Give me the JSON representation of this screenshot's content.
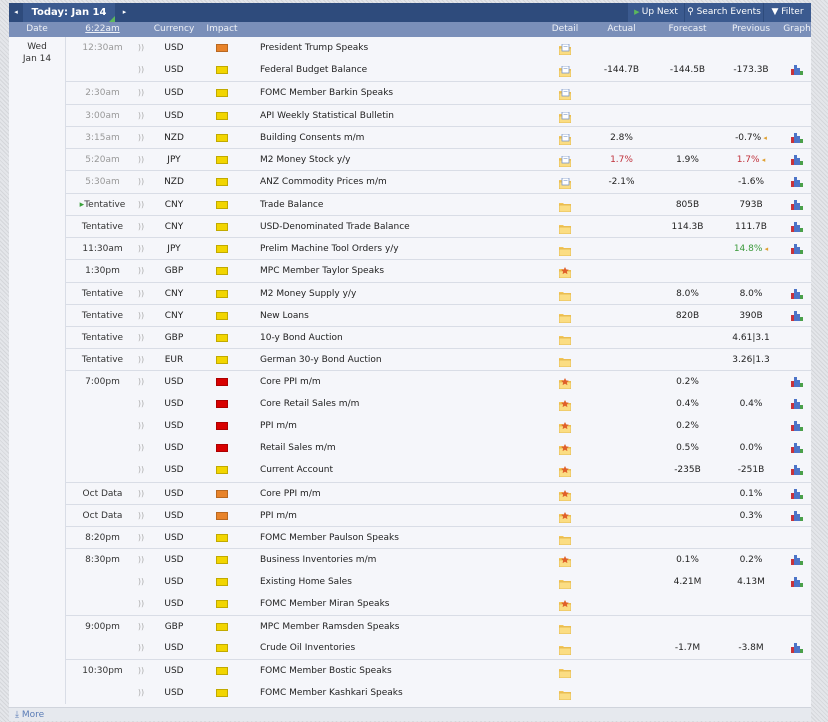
{
  "toolbar": {
    "prev": "◂",
    "today": "Today: Jan 14",
    "next": "▸",
    "up_next": "Up Next",
    "search": "Search Events",
    "filter": "Filter"
  },
  "columns": {
    "date": "Date",
    "time": "6:22am",
    "currency": "Currency",
    "impact": "Impact",
    "detail": "Detail",
    "actual": "Actual",
    "forecast": "Forecast",
    "previous": "Previous",
    "graph": "Graph"
  },
  "date": {
    "day": "Wed",
    "date": "Jan 14"
  },
  "impact_colors": {
    "high": "#d80000",
    "medium": "#e8832a",
    "low": "#f2d500"
  },
  "value_colors": {
    "better": "#3a9a3a",
    "worse": "#c0303a"
  },
  "events": [
    {
      "time": "12:30am",
      "cur": "USD",
      "impact": "medium",
      "event": "President Trump Speaks",
      "detail": "doc",
      "past": true
    },
    {
      "time": "",
      "cur": "USD",
      "impact": "low",
      "event": "Federal Budget Balance",
      "detail": "doc",
      "actual": "-144.7B",
      "forecast": "-144.5B",
      "previous": "-173.3B",
      "graph": true,
      "past": true
    },
    {
      "time": "2:30am",
      "cur": "USD",
      "impact": "low",
      "event": "FOMC Member Barkin Speaks",
      "detail": "doc",
      "past": true
    },
    {
      "time": "3:00am",
      "cur": "USD",
      "impact": "low",
      "event": "API Weekly Statistical Bulletin",
      "detail": "doc",
      "past": true
    },
    {
      "time": "3:15am",
      "cur": "NZD",
      "impact": "low",
      "event": "Building Consents m/m",
      "detail": "doc",
      "actual": "2.8%",
      "previous": "-0.7%",
      "previous_revised": true,
      "graph": true,
      "past": true
    },
    {
      "time": "5:20am",
      "cur": "JPY",
      "impact": "low",
      "event": "M2 Money Stock y/y",
      "detail": "doc",
      "actual": "1.7%",
      "actual_color": "worse",
      "forecast": "1.9%",
      "previous": "1.7%",
      "previous_color": "worse",
      "previous_revised": true,
      "graph": true,
      "past": true
    },
    {
      "time": "5:30am",
      "cur": "NZD",
      "impact": "low",
      "event": "ANZ Commodity Prices m/m",
      "detail": "doc",
      "actual": "-2.1%",
      "previous": "-1.6%",
      "graph": true,
      "past": true
    },
    {
      "time": "Tentative",
      "up_next": true,
      "cur": "CNY",
      "impact": "low",
      "event": "Trade Balance",
      "detail": "folder",
      "forecast": "805B",
      "previous": "793B",
      "graph": true
    },
    {
      "time": "Tentative",
      "cur": "CNY",
      "impact": "low",
      "event": "USD-Denominated Trade Balance",
      "detail": "folder",
      "forecast": "114.3B",
      "previous": "111.7B",
      "graph": true
    },
    {
      "time": "11:30am",
      "cur": "JPY",
      "impact": "low",
      "event": "Prelim Machine Tool Orders y/y",
      "detail": "folder",
      "previous": "14.8%",
      "previous_color": "better",
      "previous_revised": true,
      "graph": true
    },
    {
      "time": "1:30pm",
      "cur": "GBP",
      "impact": "low",
      "event": "MPC Member Taylor Speaks",
      "detail": "star"
    },
    {
      "time": "Tentative",
      "cur": "CNY",
      "impact": "low",
      "event": "M2 Money Supply y/y",
      "detail": "folder",
      "forecast": "8.0%",
      "previous": "8.0%",
      "graph": true
    },
    {
      "time": "Tentative",
      "cur": "CNY",
      "impact": "low",
      "event": "New Loans",
      "detail": "folder",
      "forecast": "820B",
      "previous": "390B",
      "graph": true
    },
    {
      "time": "Tentative",
      "cur": "GBP",
      "impact": "low",
      "event": "10-y Bond Auction",
      "detail": "folder",
      "previous": "4.61|3.1"
    },
    {
      "time": "Tentative",
      "cur": "EUR",
      "impact": "low",
      "event": "German 30-y Bond Auction",
      "detail": "folder",
      "previous": "3.26|1.3"
    },
    {
      "time": "7:00pm",
      "cur": "USD",
      "impact": "high",
      "event": "Core PPI m/m",
      "detail": "star",
      "forecast": "0.2%",
      "graph": true
    },
    {
      "time": "",
      "cur": "USD",
      "impact": "high",
      "event": "Core Retail Sales m/m",
      "detail": "star",
      "forecast": "0.4%",
      "previous": "0.4%",
      "graph": true
    },
    {
      "time": "",
      "cur": "USD",
      "impact": "high",
      "event": "PPI m/m",
      "detail": "star",
      "forecast": "0.2%",
      "graph": true
    },
    {
      "time": "",
      "cur": "USD",
      "impact": "high",
      "event": "Retail Sales m/m",
      "detail": "star",
      "forecast": "0.5%",
      "previous": "0.0%",
      "graph": true
    },
    {
      "time": "",
      "cur": "USD",
      "impact": "low",
      "event": "Current Account",
      "detail": "star",
      "forecast": "-235B",
      "previous": "-251B",
      "graph": true
    },
    {
      "time": "Oct Data",
      "cur": "USD",
      "impact": "medium",
      "event": "Core PPI m/m",
      "detail": "star",
      "previous": "0.1%",
      "graph": true
    },
    {
      "time": "Oct Data",
      "cur": "USD",
      "impact": "medium",
      "event": "PPI m/m",
      "detail": "star",
      "previous": "0.3%",
      "graph": true
    },
    {
      "time": "8:20pm",
      "cur": "USD",
      "impact": "low",
      "event": "FOMC Member Paulson Speaks",
      "detail": "folder"
    },
    {
      "time": "8:30pm",
      "cur": "USD",
      "impact": "low",
      "event": "Business Inventories m/m",
      "detail": "star",
      "forecast": "0.1%",
      "previous": "0.2%",
      "graph": true
    },
    {
      "time": "",
      "cur": "USD",
      "impact": "low",
      "event": "Existing Home Sales",
      "detail": "folder",
      "forecast": "4.21M",
      "previous": "4.13M",
      "graph": true
    },
    {
      "time": "",
      "cur": "USD",
      "impact": "low",
      "event": "FOMC Member Miran Speaks",
      "detail": "star"
    },
    {
      "time": "9:00pm",
      "cur": "GBP",
      "impact": "low",
      "event": "MPC Member Ramsden Speaks",
      "detail": "folder"
    },
    {
      "time": "",
      "cur": "USD",
      "impact": "low",
      "event": "Crude Oil Inventories",
      "detail": "folder",
      "forecast": "-1.7M",
      "previous": "-3.8M",
      "graph": true
    },
    {
      "time": "10:30pm",
      "cur": "USD",
      "impact": "low",
      "event": "FOMC Member Bostic Speaks",
      "detail": "folder"
    },
    {
      "time": "",
      "cur": "USD",
      "impact": "low",
      "event": "FOMC Member Kashkari Speaks",
      "detail": "folder"
    }
  ],
  "footer": {
    "more": "More"
  }
}
